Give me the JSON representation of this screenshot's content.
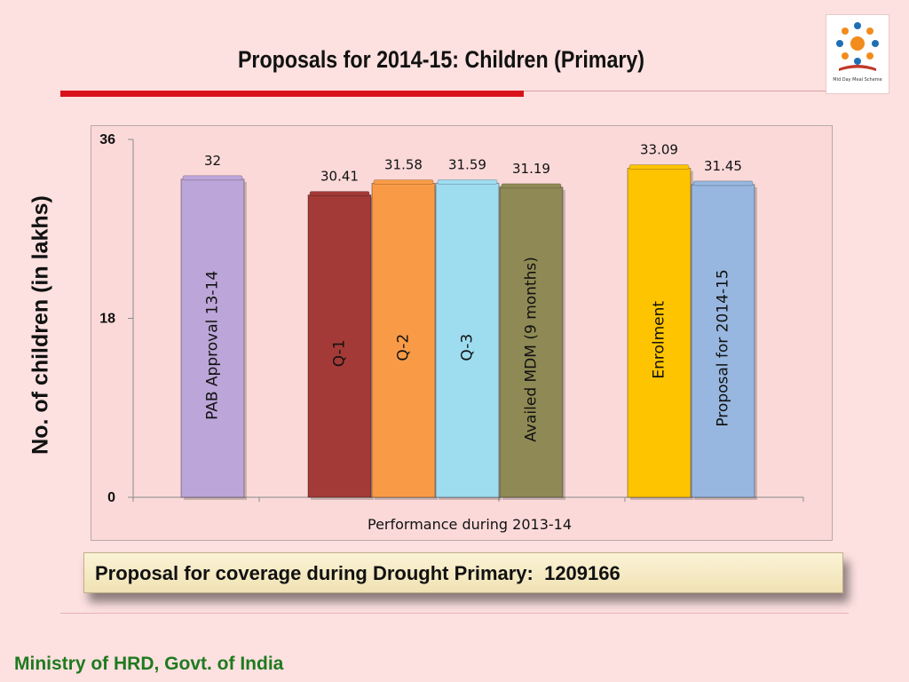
{
  "slide": {
    "title": "Proposals for 2014-15: Children (Primary)",
    "callout": "Proposal for coverage during Drought Primary:  1209166",
    "footer": "Ministry of HRD, Govt. of India",
    "logo_caption": "Mid Day Meal Scheme"
  },
  "chart_data": {
    "type": "bar",
    "title": "",
    "xlabel": "Performance during 2013-14",
    "ylabel": "No. of children (in lakhs)",
    "ylim": [
      0,
      36
    ],
    "yticks": [
      0,
      18,
      36
    ],
    "grid": false,
    "legend": "none",
    "categories": [
      "PAB Approval 13-14",
      "Q-1",
      "Q-2",
      "Q-3",
      "Availed MDM (9 months)",
      "Enrolment",
      "Proposal for 2014-15"
    ],
    "values": [
      32,
      30.41,
      31.58,
      31.59,
      31.19,
      33.09,
      31.45
    ],
    "data_labels": [
      "32",
      "30.41",
      "31.58",
      "31.59",
      "31.19",
      "33.09",
      "31.45"
    ],
    "colors": [
      "#bca5d8",
      "#a33a37",
      "#f99b46",
      "#9edcf0",
      "#8f8a55",
      "#ffc400",
      "#97b7e0"
    ]
  }
}
